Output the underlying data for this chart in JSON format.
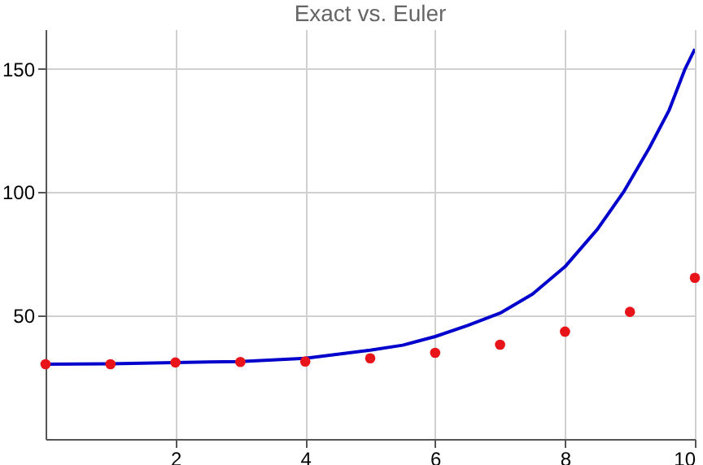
{
  "chart_data": {
    "type": "line",
    "title": "Exact vs. Euler",
    "xlim": [
      0,
      10
    ],
    "ylim": [
      0,
      166
    ],
    "xticks": [
      2,
      4,
      6,
      8,
      10
    ],
    "yticks": [
      50,
      100,
      150
    ],
    "grid": true,
    "series": [
      {
        "color": "#0000cc",
        "x": [
          0,
          1,
          2,
          3,
          4,
          5,
          5.5,
          6,
          6.5,
          7,
          7.5,
          8,
          8.5,
          8.9,
          9.3,
          9.6,
          9.85,
          10
        ],
        "values": [
          30.3,
          30.5,
          31.0,
          31.4,
          32.7,
          36,
          38,
          41.5,
          46,
          51,
          58.7,
          69.8,
          85,
          100,
          118,
          133,
          150,
          158
        ]
      },
      {
        "type": "scatter",
        "marker": "circle",
        "color": "#e8141a",
        "x": [
          0,
          1,
          2,
          3,
          4,
          5,
          6,
          7,
          8,
          9,
          10
        ],
        "values": [
          30.3,
          30.3,
          31.0,
          31.2,
          31.4,
          32.7,
          34.9,
          38.2,
          43.5,
          51.5,
          65.3
        ]
      }
    ]
  }
}
